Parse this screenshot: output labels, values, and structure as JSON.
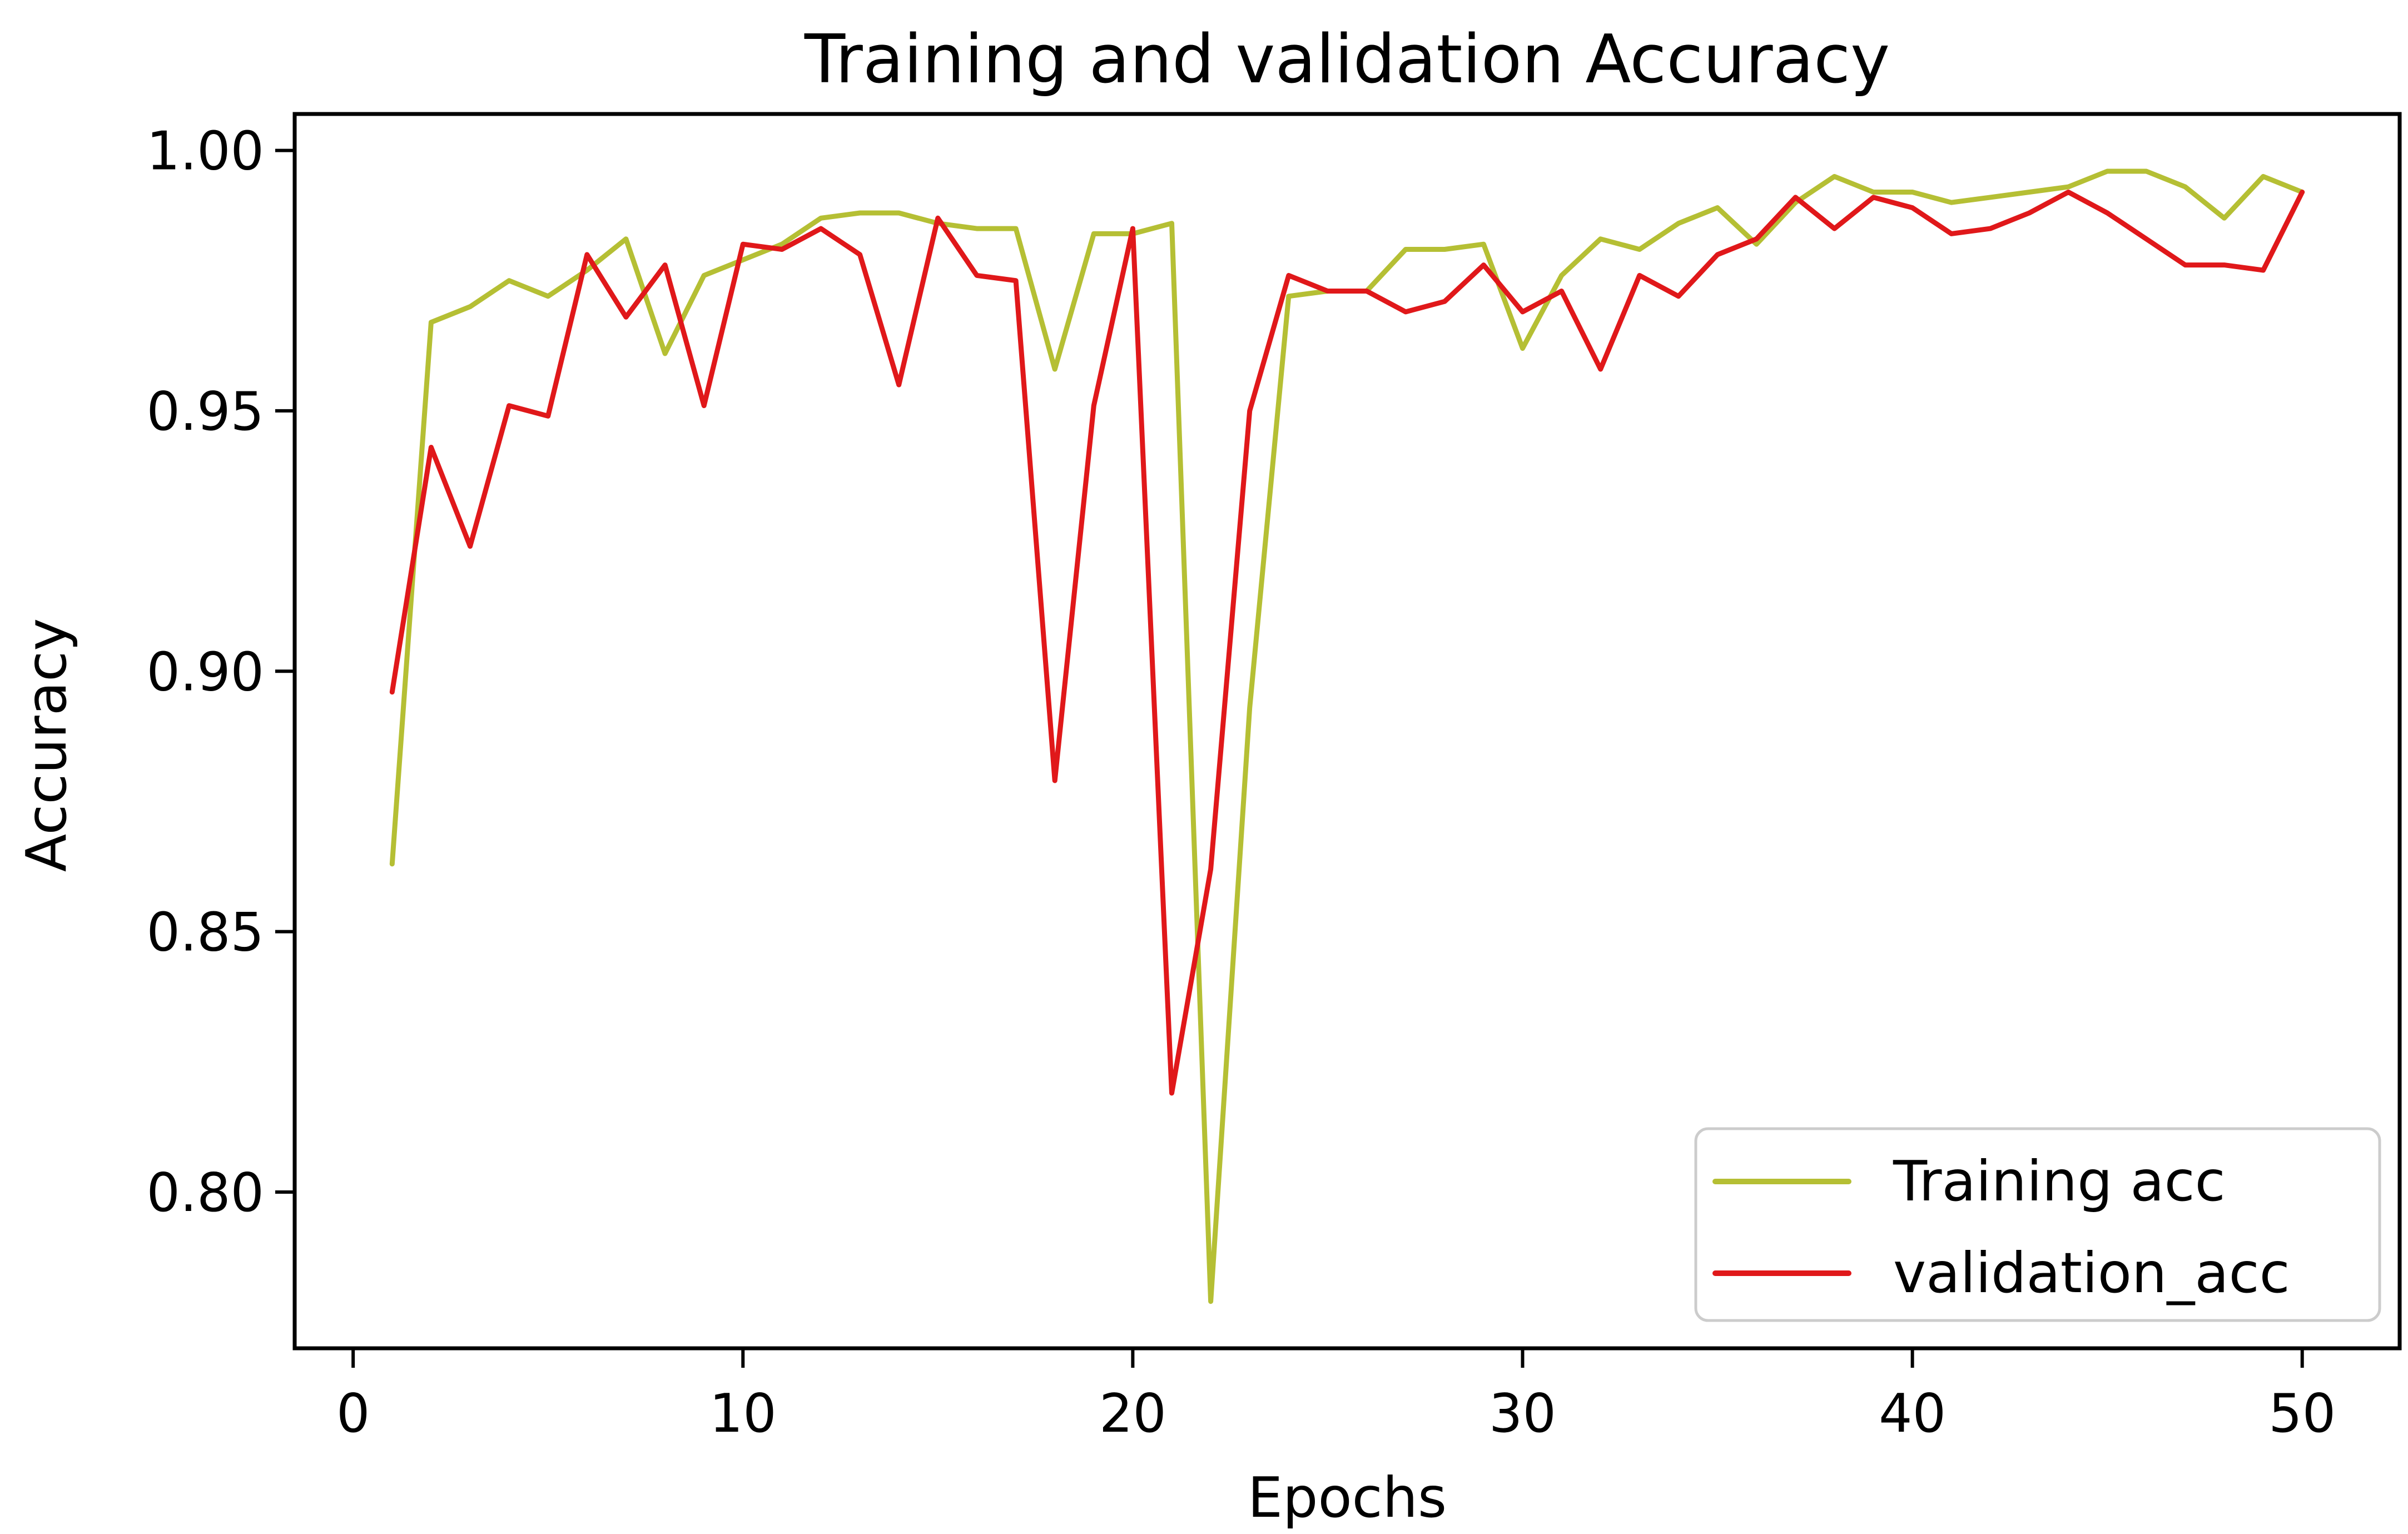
{
  "chart_data": {
    "type": "line",
    "title": "Training and validation Accuracy",
    "xlabel": "Epochs",
    "ylabel": "Accuracy",
    "xlim": [
      -1.5,
      52.5
    ],
    "ylim": [
      0.77,
      1.007
    ],
    "xticks": [
      0,
      10,
      20,
      30,
      40,
      50
    ],
    "yticks": [
      0.8,
      0.85,
      0.9,
      0.95,
      1.0
    ],
    "ytick_labels": [
      "0.80",
      "0.85",
      "0.90",
      "0.95",
      "1.00"
    ],
    "grid": false,
    "legend_position": "lower-right",
    "x": [
      1,
      2,
      3,
      4,
      5,
      6,
      7,
      8,
      9,
      10,
      11,
      12,
      13,
      14,
      15,
      16,
      17,
      18,
      19,
      20,
      21,
      22,
      23,
      24,
      25,
      26,
      27,
      28,
      29,
      30,
      31,
      32,
      33,
      34,
      35,
      36,
      37,
      38,
      39,
      40,
      41,
      42,
      43,
      44,
      45,
      46,
      47,
      48,
      49,
      50
    ],
    "series": [
      {
        "name": "Training acc",
        "color": "#b5bf34",
        "values": [
          0.863,
          0.967,
          0.97,
          0.975,
          0.972,
          0.977,
          0.983,
          0.961,
          0.976,
          0.979,
          0.982,
          0.987,
          0.988,
          0.988,
          0.986,
          0.985,
          0.985,
          0.958,
          0.984,
          0.984,
          0.986,
          0.779,
          0.893,
          0.972,
          0.973,
          0.973,
          0.981,
          0.981,
          0.982,
          0.962,
          0.976,
          0.983,
          0.981,
          0.986,
          0.989,
          0.982,
          0.99,
          0.995,
          0.992,
          0.992,
          0.99,
          0.991,
          0.992,
          0.993,
          0.996,
          0.996,
          0.993,
          0.987,
          0.995,
          0.992
        ]
      },
      {
        "name": "validation_acc",
        "color": "#e0181a",
        "values": [
          0.896,
          0.943,
          0.924,
          0.951,
          0.949,
          0.98,
          0.968,
          0.978,
          0.951,
          0.982,
          0.981,
          0.985,
          0.98,
          0.955,
          0.987,
          0.976,
          0.975,
          0.879,
          0.951,
          0.985,
          0.819,
          0.862,
          0.95,
          0.976,
          0.973,
          0.973,
          0.969,
          0.971,
          0.978,
          0.969,
          0.973,
          0.958,
          0.976,
          0.972,
          0.98,
          0.983,
          0.991,
          0.985,
          0.991,
          0.989,
          0.984,
          0.985,
          0.988,
          0.992,
          0.988,
          0.983,
          0.978,
          0.978,
          0.977,
          0.992
        ]
      }
    ]
  }
}
